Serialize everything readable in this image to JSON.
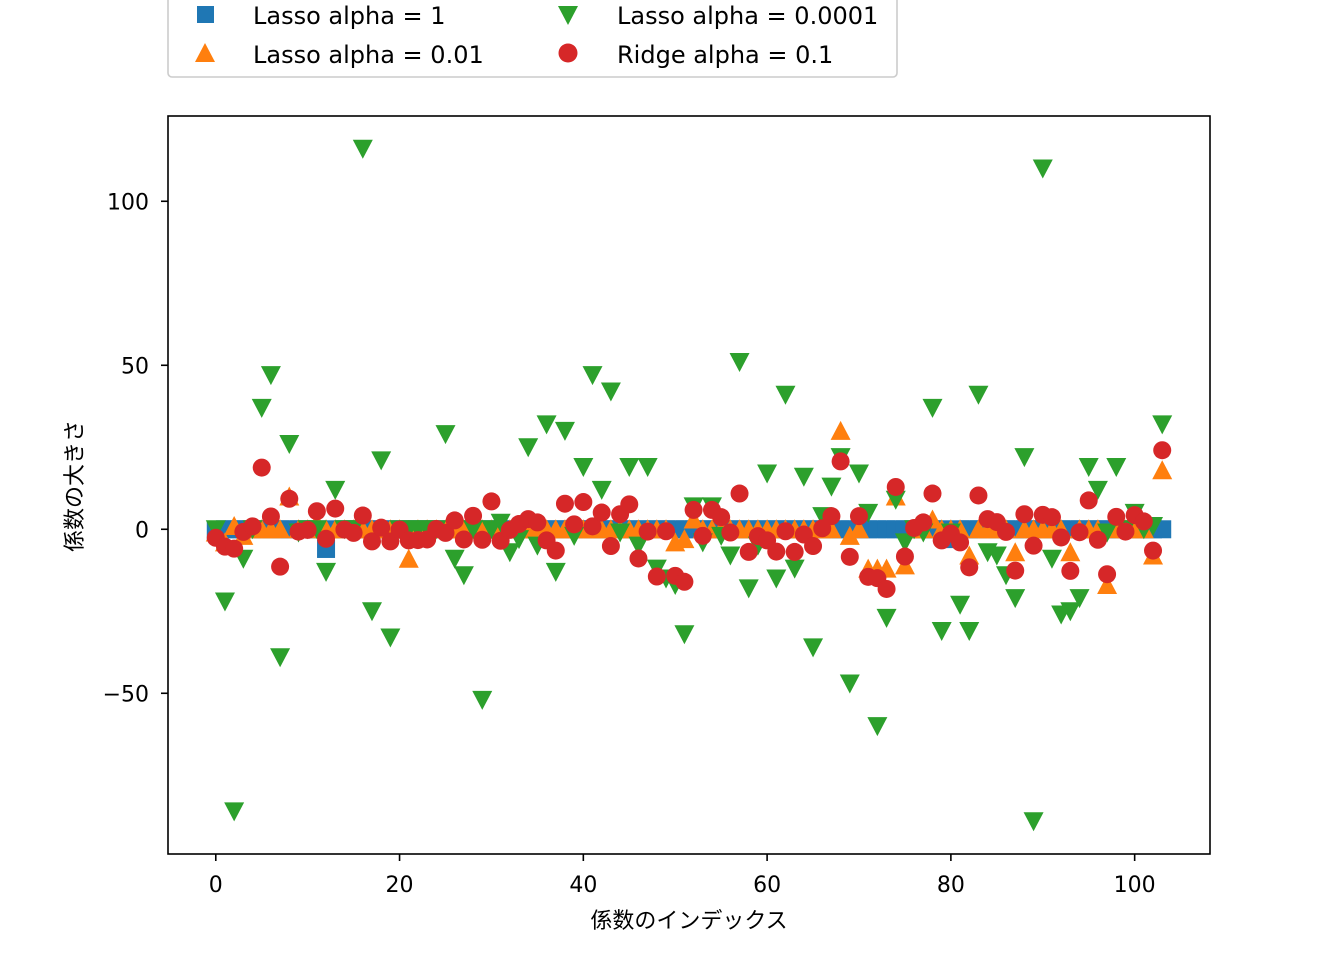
{
  "chart_data": {
    "type": "scatter",
    "xlabel": "係数のインデックス",
    "ylabel": "係数の大きさ",
    "xlim": [
      -5.2,
      108.2
    ],
    "ylim": [
      -99,
      126
    ],
    "xticks": [
      0,
      20,
      40,
      60,
      80,
      100
    ],
    "yticks": [
      -50,
      0,
      50,
      100
    ],
    "ytick_labels": [
      "−50",
      "0",
      "50",
      "100"
    ],
    "legend_position": "top",
    "grid": false,
    "series": [
      {
        "name": "Lasso alpha = 1",
        "marker": "square",
        "color": "#1f77b4",
        "values": [
          -0.5,
          0,
          0,
          0,
          0,
          0,
          0,
          0,
          0,
          0,
          0,
          0,
          -6,
          0,
          0,
          0,
          0,
          0,
          0,
          0,
          0,
          0,
          0,
          0,
          0,
          0,
          0,
          0,
          0,
          0,
          0,
          0,
          0,
          0,
          0,
          0,
          0,
          0,
          0,
          0,
          0,
          0,
          0,
          0,
          0,
          0,
          0,
          0,
          0,
          0,
          0,
          0,
          0,
          0,
          0,
          0,
          0,
          0,
          0,
          0,
          0,
          0,
          0,
          0,
          0,
          0,
          0,
          0,
          0,
          0,
          0,
          0,
          0,
          0,
          0,
          0,
          0,
          0,
          0,
          0,
          -3,
          0,
          0,
          0,
          0,
          0,
          0,
          0,
          0,
          0,
          0,
          0,
          0,
          0,
          0,
          0,
          0,
          0,
          0,
          0,
          0,
          0,
          0,
          0
        ]
      },
      {
        "name": "Lasso alpha = 0.01",
        "marker": "triangle-up",
        "color": "#ff7f0e",
        "values": [
          -1,
          -4,
          1,
          -2,
          0,
          0,
          0,
          0,
          10,
          0,
          0,
          2,
          0,
          0,
          0,
          0,
          0,
          0,
          0,
          0,
          0,
          -9,
          0,
          0,
          0,
          0,
          0,
          0,
          0,
          0,
          0,
          0,
          0,
          0,
          0,
          0,
          0,
          0,
          0,
          0,
          0,
          0,
          0,
          0,
          0,
          0,
          0,
          0,
          0,
          0,
          -4,
          -3,
          3,
          0,
          0,
          0,
          0,
          0,
          0,
          0,
          0,
          0,
          0,
          0,
          0,
          0,
          0,
          0,
          30,
          -2,
          0,
          -12,
          -12,
          -12,
          10,
          -11,
          0,
          0,
          3,
          0,
          0,
          0,
          -8,
          0,
          0,
          0,
          0,
          -7,
          0,
          0,
          0,
          0,
          0,
          -7,
          0,
          0,
          0,
          -17,
          0,
          0,
          0,
          0,
          -8,
          18
        ]
      },
      {
        "name": "Lasso alpha = 0.0001",
        "marker": "triangle-down",
        "color": "#2ca02c",
        "values": [
          0,
          -22,
          -86,
          -9,
          0,
          37,
          47,
          -39,
          26,
          -1,
          0,
          0,
          -13,
          12,
          0,
          0,
          116,
          -25,
          21,
          -33,
          0,
          0,
          0,
          0,
          0,
          29,
          -9,
          -14,
          0,
          -52,
          0,
          2,
          -7,
          -3,
          25,
          -5,
          32,
          -13,
          30,
          -2,
          19,
          47,
          12,
          42,
          -1,
          19,
          -5,
          19,
          -12,
          -15,
          -17,
          -32,
          7,
          -4,
          7,
          -2,
          -8,
          51,
          -18,
          -5,
          17,
          -15,
          41,
          -12,
          16,
          -36,
          4,
          13,
          22,
          -47,
          17,
          5,
          -60,
          -27,
          9,
          -4,
          0,
          -1,
          37,
          -31,
          -1,
          -23,
          -31,
          41,
          -7,
          -8,
          -14,
          -21,
          22,
          -89,
          110,
          -9,
          -26,
          -25,
          -21,
          19,
          12,
          -1,
          19,
          0,
          5,
          0,
          1,
          32
        ]
      },
      {
        "name": "Ridge alpha = 0.1",
        "marker": "circle",
        "color": "#d62728",
        "values": [
          -2.6,
          -5.3,
          -5.9,
          -0.8,
          0.9,
          18.8,
          3.9,
          -11.4,
          9.3,
          -0.7,
          -0.2,
          5.5,
          -2.9,
          6.3,
          -0.1,
          -1.1,
          4.2,
          -3.7,
          0.5,
          -3.7,
          -0.1,
          -3.4,
          -3.3,
          -3.1,
          0.1,
          -1.1,
          2.7,
          -3.1,
          4.1,
          -3.2,
          8.5,
          -3.5,
          -0.2,
          1.6,
          3.1,
          2.1,
          -3.4,
          -6.5,
          7.8,
          1.5,
          8.3,
          0.9,
          5.1,
          -5.1,
          4.6,
          7.6,
          -8.9,
          -0.7,
          -14.4,
          -0.6,
          -14.2,
          -16.0,
          5.9,
          -2.0,
          5.9,
          3.7,
          -1.0,
          10.9,
          -6.9,
          -2.1,
          -3.4,
          -6.8,
          -0.6,
          -6.9,
          -1.6,
          -5.1,
          0.3,
          4.0,
          20.7,
          -8.4,
          4.0,
          -14.5,
          -14.9,
          -18.2,
          12.9,
          -8.3,
          0.4,
          2.1,
          10.9,
          -3.4,
          -1.3,
          -4.0,
          -11.6,
          10.3,
          3.1,
          2.2,
          -0.8,
          -12.6,
          4.6,
          -5.0,
          4.4,
          3.7,
          -2.5,
          -12.7,
          -0.9,
          8.8,
          -3.2,
          -13.7,
          3.8,
          -0.7,
          4.3,
          2.4,
          -6.5,
          24.1
        ]
      }
    ]
  }
}
